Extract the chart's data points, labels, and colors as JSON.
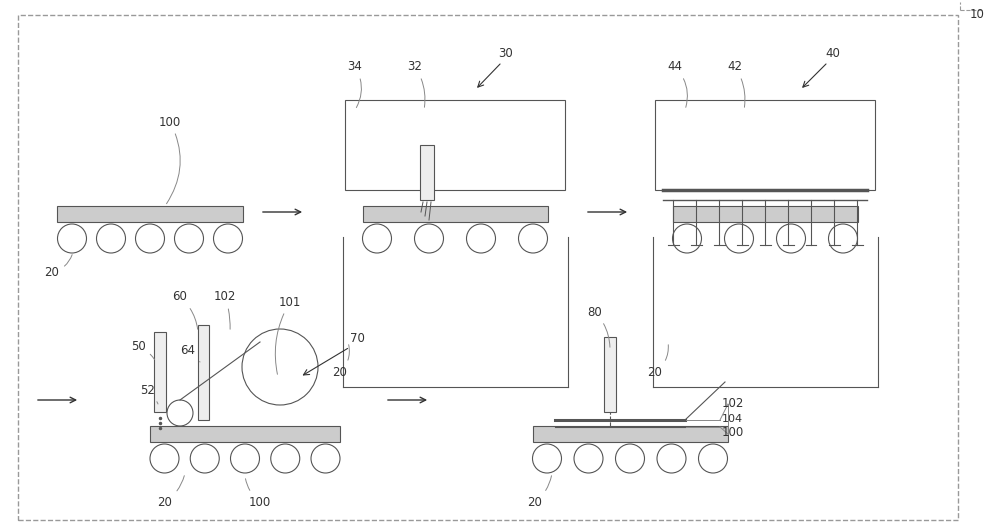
{
  "bg_color": "#ffffff",
  "line_color": "#555555",
  "fig_label": "10"
}
